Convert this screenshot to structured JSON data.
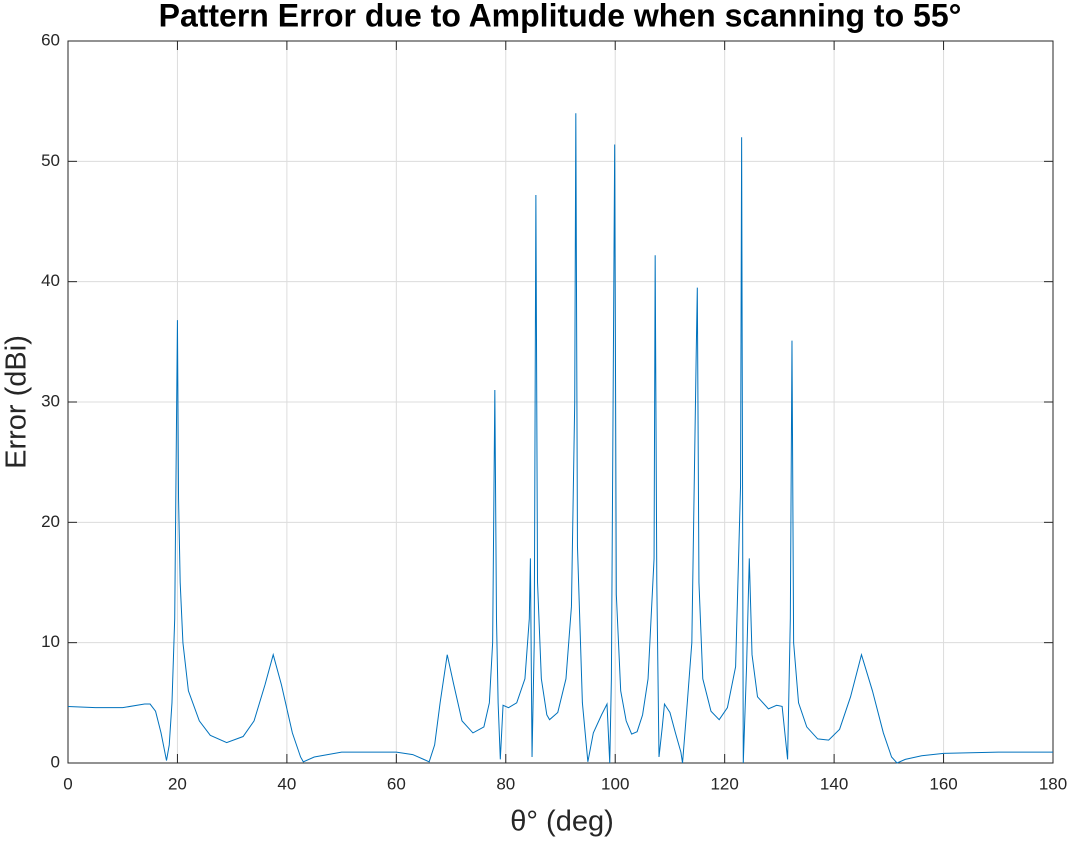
{
  "chart_data": {
    "type": "line",
    "title": "Pattern Error due to Amplitude when scanning to 55°",
    "x_label": "θ° (deg)",
    "y_label": "Error (dBi)",
    "xlim": [
      0,
      180
    ],
    "xticks": [
      0,
      20,
      40,
      60,
      80,
      100,
      120,
      140,
      160,
      180
    ],
    "ylim": [
      0,
      60
    ],
    "yticks": [
      0,
      10,
      20,
      30,
      40,
      50,
      60
    ],
    "grid": true,
    "x": [
      0,
      5,
      10,
      14,
      15,
      16,
      17,
      18,
      18.5,
      19,
      19.5,
      19.8,
      20,
      20.2,
      20.5,
      21,
      22,
      24,
      26,
      29,
      32,
      34,
      36,
      37.5,
      39,
      41,
      42.5,
      43,
      45,
      50,
      55,
      60,
      63,
      65,
      66,
      67,
      68,
      69.3,
      70.5,
      72,
      74,
      76,
      77,
      77.6,
      78,
      78.3,
      78.6,
      79,
      79.5,
      80.5,
      82,
      83.5,
      84.3,
      84.5,
      84.8,
      85.2,
      85.5,
      85.8,
      86.5,
      87.5,
      88,
      89.5,
      91,
      92,
      92.6,
      92.8,
      93.1,
      94,
      95,
      96,
      97.5,
      98.5,
      99,
      99.3,
      99.9,
      100.2,
      101,
      102,
      103,
      104,
      105,
      106,
      107.1,
      107.3,
      107.6,
      108,
      108.6,
      109,
      110,
      111,
      112,
      112.3,
      113,
      114,
      114.8,
      115,
      115.3,
      116,
      117.5,
      119,
      120.5,
      122,
      122.9,
      123.1,
      123.4,
      124,
      124.5,
      125,
      126,
      128,
      129.5,
      130.5,
      131.5,
      132,
      132.3,
      132.6,
      133.5,
      135,
      137,
      139,
      141,
      143,
      145,
      147,
      149,
      150.5,
      151.5,
      153,
      156,
      160,
      170,
      180
    ],
    "series": [
      {
        "color": "#0072bd",
        "values": [
          4.7,
          4.6,
          4.6,
          4.9,
          4.9,
          4.3,
          2.5,
          0.2,
          1.5,
          5,
          12,
          27,
          36.8,
          22,
          15,
          10,
          6,
          3.5,
          2.3,
          1.7,
          2.2,
          3.5,
          6.5,
          9,
          6.5,
          2.5,
          0.5,
          0.1,
          0.5,
          0.9,
          0.9,
          0.9,
          0.7,
          0.3,
          0.1,
          1.5,
          5,
          9,
          6.5,
          3.5,
          2.5,
          3,
          5,
          10,
          31,
          12,
          5,
          0.3,
          4.8,
          4.6,
          5,
          7,
          12,
          17,
          0.5,
          10,
          47.2,
          15,
          7,
          4,
          3.6,
          4.2,
          7,
          13,
          30,
          54,
          18,
          5,
          0.1,
          2.5,
          4,
          4.9,
          0,
          7,
          51.4,
          14,
          6,
          3.5,
          2.4,
          2.6,
          4,
          7,
          17,
          42.2,
          15,
          0.5,
          3,
          4.9,
          4.2,
          2.5,
          0.9,
          0,
          4,
          10,
          34,
          39.5,
          15,
          7,
          4.3,
          3.6,
          4.6,
          8,
          23,
          52,
          0,
          8,
          17,
          9,
          5.5,
          4.5,
          4.8,
          4.7,
          0.3,
          12,
          35.1,
          10,
          5,
          3,
          2,
          1.9,
          2.8,
          5.5,
          9,
          6,
          2.5,
          0.5,
          0,
          0.3,
          0.6,
          0.8,
          0.9,
          0.9
        ]
      }
    ]
  }
}
